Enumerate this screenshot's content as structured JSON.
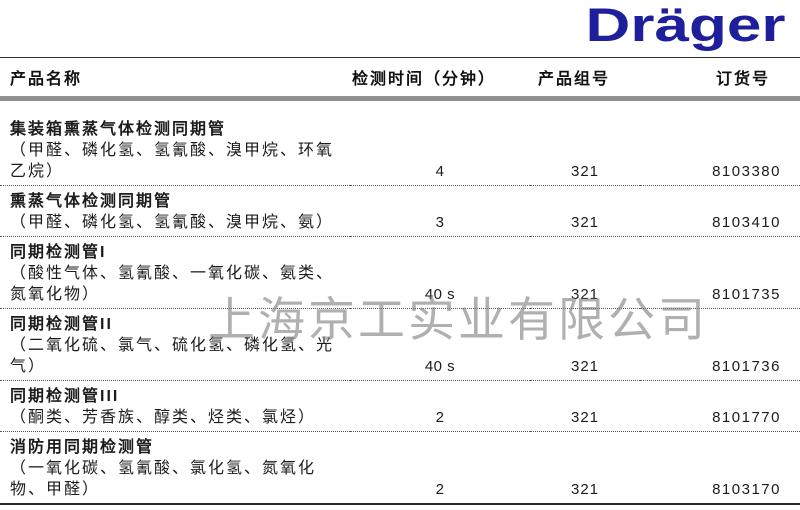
{
  "brand": {
    "logo_text": "Dräger",
    "logo_color": "#1f1f9c"
  },
  "watermark": {
    "text": "上海京工实业有限公司",
    "color": "#7d7d7d"
  },
  "table": {
    "headers": {
      "name": "产品名称",
      "time": "检测时间（分钟）",
      "group": "产品组号",
      "order": "订货号"
    },
    "rows": [
      {
        "title": "集装箱熏蒸气体检测同期管",
        "detail": "（甲醛、磷化氢、氢氰酸、溴甲烷、环氧\n乙烷）",
        "time": "4",
        "group": "321",
        "order": "8103380"
      },
      {
        "title": "熏蒸气体检测同期管",
        "detail": "（甲醛、磷化氢、氢氰酸、溴甲烷、氨）",
        "time": "3",
        "group": "321",
        "order": "8103410"
      },
      {
        "title": "同期检测管I",
        "detail": "（酸性气体、氢氰酸、一氧化碳、氨类、\n氮氧化物）",
        "time": "40 s",
        "group": "321",
        "order": "8101735"
      },
      {
        "title": "同期检测管II",
        "detail": "（二氧化硫、氯气、硫化氢、磷化氢、光\n气）",
        "time": "40 s",
        "group": "321",
        "order": "8101736"
      },
      {
        "title": "同期检测管III",
        "detail": "（酮类、芳香族、醇类、烃类、氯烃）",
        "time": "2",
        "group": "321",
        "order": "8101770"
      },
      {
        "title": "消防用同期检测管",
        "detail": "（一氧化碳、氢氰酸、氯化氢、氮氧化\n物、甲醛）",
        "time": "2",
        "group": "321",
        "order": "8103170"
      }
    ]
  }
}
